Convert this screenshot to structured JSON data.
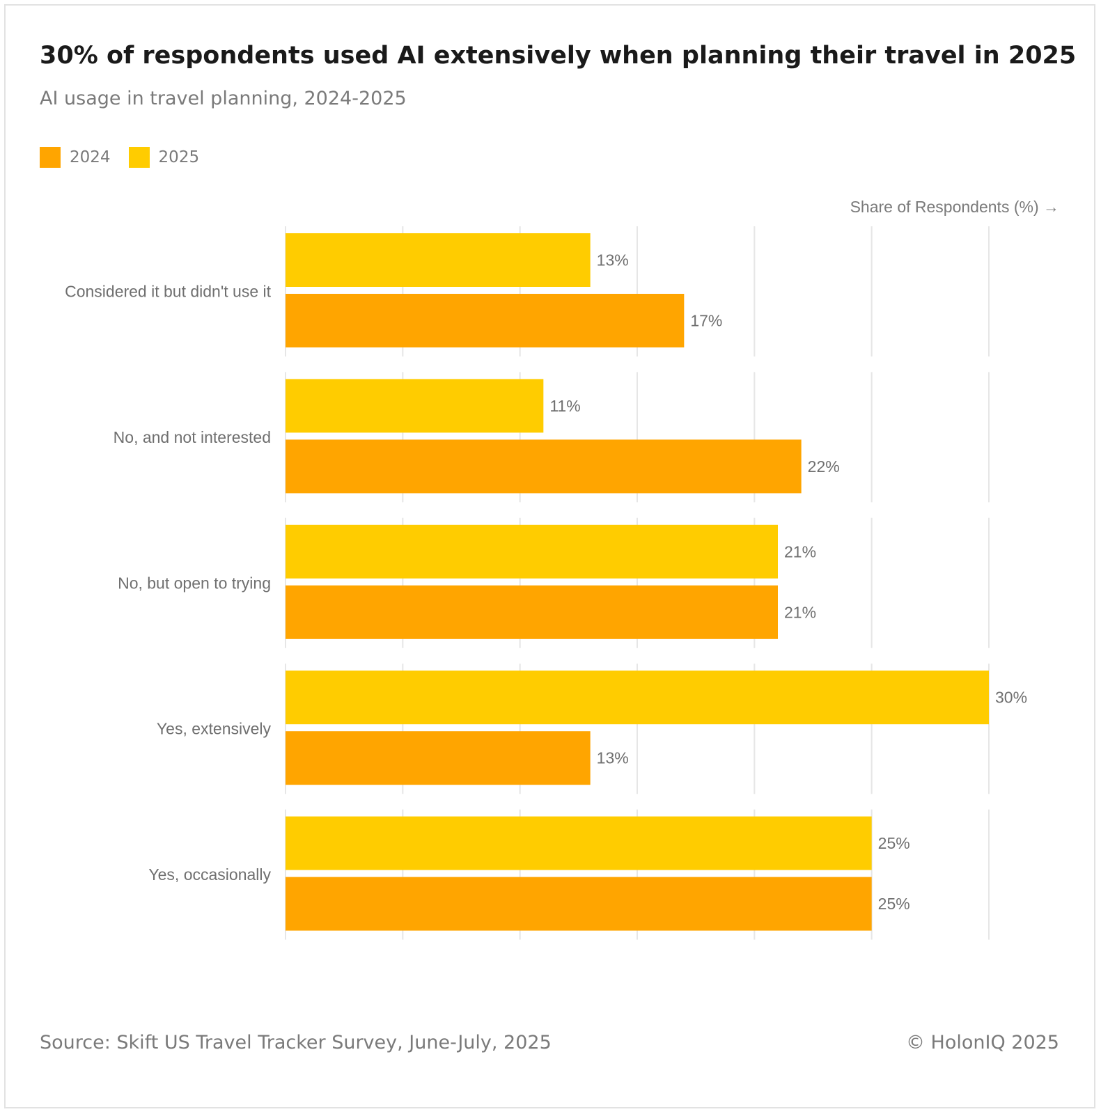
{
  "chart_data": {
    "type": "bar",
    "orientation": "horizontal",
    "title": "30% of respondents used AI extensively when planning their travel in 2025",
    "subtitle": "AI usage in travel planning, 2024-2025",
    "xlabel": "Share of Respondents (%) →",
    "ylabel": "",
    "xlim": [
      0,
      30
    ],
    "grid": true,
    "legend_position": "top-left",
    "categories": [
      "Considered it but didn't use it",
      "No, and not interested",
      "No, but open to trying",
      "Yes, extensively",
      "Yes, occasionally"
    ],
    "series": [
      {
        "name": "2025",
        "color": "#FFCC00",
        "values": [
          13,
          11,
          21,
          30,
          25
        ],
        "labels": [
          "13%",
          "11%",
          "21%",
          "30%",
          "25%"
        ]
      },
      {
        "name": "2024",
        "color": "#FFA500",
        "values": [
          17,
          22,
          21,
          13,
          25
        ],
        "labels": [
          "17%",
          "22%",
          "21%",
          "13%",
          "25%"
        ]
      }
    ],
    "legend": [
      {
        "name": "2024",
        "color": "#FFA500"
      },
      {
        "name": "2025",
        "color": "#FFCC00"
      }
    ],
    "source": "Source: Skift US Travel Tracker Survey, June-July, 2025",
    "copyright": "© HolonIQ 2025"
  }
}
